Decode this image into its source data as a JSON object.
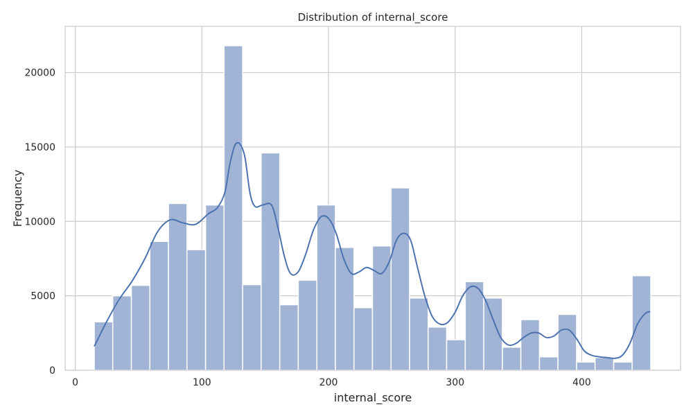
{
  "chart_data": {
    "type": "bar",
    "title": "Distribution of internal_score",
    "xlabel": "internal_score",
    "ylabel": "Frequency",
    "xlim": [
      -8,
      478
    ],
    "ylim": [
      0,
      23100
    ],
    "xticks": [
      0,
      100,
      200,
      300,
      400
    ],
    "yticks": [
      0,
      5000,
      10000,
      15000,
      20000
    ],
    "grid": true,
    "bar_color": "#a2b4d6",
    "bar_edge_color": "#ffffff",
    "kde_color": "#4c72b0",
    "bins": [
      {
        "x0": 15.0,
        "x1": 29.6,
        "count": 3250
      },
      {
        "x0": 29.6,
        "x1": 44.3,
        "count": 5000
      },
      {
        "x0": 44.3,
        "x1": 58.9,
        "count": 5700
      },
      {
        "x0": 58.9,
        "x1": 73.6,
        "count": 8650
      },
      {
        "x0": 73.6,
        "x1": 88.2,
        "count": 11200
      },
      {
        "x0": 88.2,
        "x1": 102.9,
        "count": 8100
      },
      {
        "x0": 102.9,
        "x1": 117.5,
        "count": 11100
      },
      {
        "x0": 117.5,
        "x1": 132.2,
        "count": 21800
      },
      {
        "x0": 132.2,
        "x1": 146.8,
        "count": 5750
      },
      {
        "x0": 146.8,
        "x1": 161.5,
        "count": 14600
      },
      {
        "x0": 161.5,
        "x1": 176.1,
        "count": 4400
      },
      {
        "x0": 176.1,
        "x1": 190.8,
        "count": 6050
      },
      {
        "x0": 190.8,
        "x1": 205.4,
        "count": 11100
      },
      {
        "x0": 205.4,
        "x1": 220.1,
        "count": 8250
      },
      {
        "x0": 220.1,
        "x1": 234.7,
        "count": 4200
      },
      {
        "x0": 234.7,
        "x1": 249.4,
        "count": 8350
      },
      {
        "x0": 249.4,
        "x1": 264.0,
        "count": 12250
      },
      {
        "x0": 264.0,
        "x1": 278.7,
        "count": 4850
      },
      {
        "x0": 278.7,
        "x1": 293.3,
        "count": 2900
      },
      {
        "x0": 293.3,
        "x1": 308.0,
        "count": 2050
      },
      {
        "x0": 308.0,
        "x1": 322.6,
        "count": 5950
      },
      {
        "x0": 322.6,
        "x1": 337.3,
        "count": 4850
      },
      {
        "x0": 337.3,
        "x1": 351.9,
        "count": 1550
      },
      {
        "x0": 351.9,
        "x1": 366.6,
        "count": 3400
      },
      {
        "x0": 366.6,
        "x1": 381.2,
        "count": 900
      },
      {
        "x0": 381.2,
        "x1": 395.9,
        "count": 3750
      },
      {
        "x0": 395.9,
        "x1": 410.5,
        "count": 550
      },
      {
        "x0": 410.5,
        "x1": 425.2,
        "count": 850
      },
      {
        "x0": 425.2,
        "x1": 439.8,
        "count": 550
      },
      {
        "x0": 439.8,
        "x1": 454.5,
        "count": 6350
      }
    ],
    "kde": {
      "x": [
        15,
        25,
        35,
        45,
        55,
        65,
        75,
        85,
        95,
        105,
        112,
        118,
        122,
        126,
        130,
        134,
        138,
        142,
        148,
        155,
        160,
        165,
        170,
        176,
        182,
        188,
        194,
        200,
        206,
        212,
        218,
        224,
        230,
        236,
        242,
        248,
        254,
        260,
        265,
        270,
        276,
        282,
        288,
        294,
        300,
        306,
        312,
        318,
        324,
        330,
        336,
        342,
        348,
        354,
        360,
        366,
        372,
        378,
        384,
        390,
        396,
        402,
        408,
        414,
        420,
        426,
        432,
        438,
        444,
        450,
        454
      ],
      "y": [
        1600,
        3300,
        4800,
        6000,
        7500,
        9300,
        10100,
        9900,
        9800,
        10500,
        10900,
        11900,
        13800,
        15100,
        15200,
        14300,
        11900,
        11000,
        11100,
        11100,
        9600,
        7700,
        6500,
        6600,
        7800,
        9400,
        10300,
        10200,
        9200,
        7500,
        6500,
        6600,
        6900,
        6700,
        6500,
        7300,
        8800,
        9200,
        8700,
        7000,
        5000,
        3600,
        3100,
        3200,
        3900,
        5000,
        5600,
        5500,
        4700,
        3400,
        2200,
        1700,
        1800,
        2200,
        2500,
        2500,
        2200,
        2300,
        2700,
        2700,
        2100,
        1300,
        1000,
        900,
        850,
        800,
        1000,
        1800,
        3100,
        3800,
        3950
      ]
    }
  }
}
